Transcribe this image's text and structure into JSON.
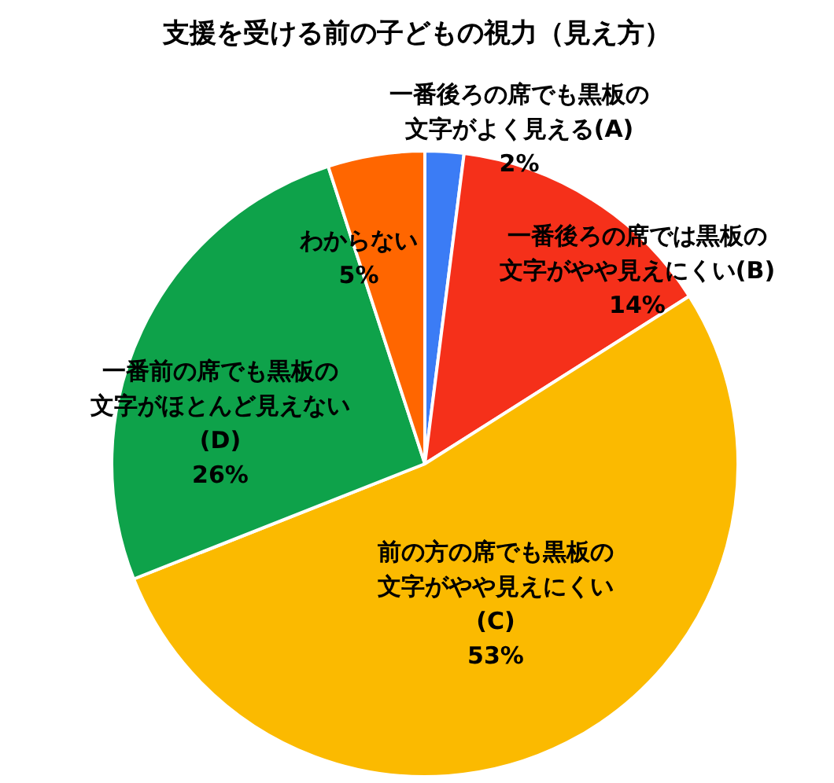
{
  "chart_data": {
    "type": "pie",
    "title": "支援を受ける前の子どもの視力（見え方）",
    "categories": [
      "一番後ろの席でも黒板の文字がよく見える(A)",
      "一番後ろの席では黒板の文字がやや見えにくい(B)",
      "前の方の席でも黒板の文字がやや見えにくい(C)",
      "一番前の席でも黒板の文字がほとんど見えない(D)",
      "わからない"
    ],
    "values": [
      2,
      14,
      53,
      26,
      5
    ],
    "colors": [
      "#3b7cf5",
      "#f5301a",
      "#fbba00",
      "#0ea24a",
      "#ff6600"
    ],
    "value_labels": [
      "2%",
      "14%",
      "53%",
      "26%",
      "5%"
    ],
    "legend": false
  }
}
